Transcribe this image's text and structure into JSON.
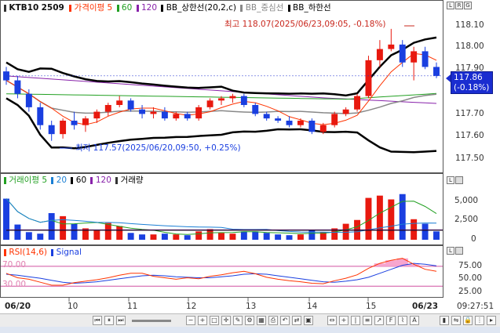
{
  "price_panel": {
    "symbol": "KTB10",
    "contract": "2509",
    "legend": [
      {
        "label": "가격이평",
        "periods": [
          "5",
          "60",
          "120"
        ],
        "colors": [
          "#ff3300",
          "#22a022",
          "#8822aa"
        ]
      },
      {
        "label": "BB_상한선(20,2,c)",
        "color": "#000000"
      },
      {
        "label": "BB_중심선",
        "color": "#888888"
      },
      {
        "label": "BB_하한선",
        "color": "#000000"
      }
    ],
    "y_ticks": [
      "118.10",
      "118.00",
      "117.90",
      "117.80",
      "117.70",
      "117.60",
      "117.50"
    ],
    "high_annotation": "최고 118.07(2025/06/23,09:05, -0.18%)",
    "low_annotation": "최저 117.57(2025/06/20,09:50, +0.25%)",
    "current_price": "117.86",
    "current_change": "(-0.18%)",
    "corner_buttons": [
      "L",
      "R",
      "G"
    ]
  },
  "volume_panel": {
    "legend_prefix": "거래이평",
    "periods": [
      "5",
      "20",
      "60",
      "120"
    ],
    "period_colors": [
      "#22a022",
      "#1a7fd4",
      "#000000",
      "#8822aa"
    ],
    "series_label": "거래량",
    "y_ticks": [
      "5,000",
      "2,500",
      "0"
    ]
  },
  "rsi_panel": {
    "legend": "RSI(14,6)",
    "signal": "Signal",
    "levels": [
      "70.00",
      "30.00"
    ],
    "y_ticks": [
      "75.00",
      "50.00",
      "25.00"
    ]
  },
  "x_axis": {
    "labels": [
      "06/20",
      "10",
      "11",
      "12",
      "13",
      "14",
      "15",
      "06/23"
    ],
    "clock": "09:27:51"
  },
  "colors": {
    "up": "#e8190f",
    "down": "#1a3fe0",
    "upper_band": "#000000",
    "mid_band": "#888888",
    "ma5": "#ff3300",
    "ma60": "#22a022",
    "ma120": "#8822aa",
    "highlight": "#1a2dd0"
  },
  "chart_data": {
    "type": "candlestick",
    "x_labels": [
      "06/20",
      "10",
      "11",
      "12",
      "13",
      "14",
      "15",
      "06/23"
    ],
    "price_ylim": [
      117.45,
      118.15
    ],
    "candles": [
      {
        "o": 117.88,
        "h": 117.9,
        "l": 117.82,
        "c": 117.84
      },
      {
        "o": 117.84,
        "h": 117.86,
        "l": 117.76,
        "c": 117.78
      },
      {
        "o": 117.78,
        "h": 117.8,
        "l": 117.7,
        "c": 117.72
      },
      {
        "o": 117.72,
        "h": 117.74,
        "l": 117.62,
        "c": 117.64
      },
      {
        "o": 117.64,
        "h": 117.66,
        "l": 117.57,
        "c": 117.6
      },
      {
        "o": 117.6,
        "h": 117.67,
        "l": 117.58,
        "c": 117.66
      },
      {
        "o": 117.66,
        "h": 117.7,
        "l": 117.62,
        "c": 117.64
      },
      {
        "o": 117.64,
        "h": 117.68,
        "l": 117.61,
        "c": 117.67
      },
      {
        "o": 117.67,
        "h": 117.71,
        "l": 117.65,
        "c": 117.7
      },
      {
        "o": 117.7,
        "h": 117.74,
        "l": 117.68,
        "c": 117.73
      },
      {
        "o": 117.73,
        "h": 117.77,
        "l": 117.72,
        "c": 117.75
      },
      {
        "o": 117.75,
        "h": 117.76,
        "l": 117.7,
        "c": 117.71
      },
      {
        "o": 117.71,
        "h": 117.73,
        "l": 117.67,
        "c": 117.69
      },
      {
        "o": 117.69,
        "h": 117.72,
        "l": 117.67,
        "c": 117.7
      },
      {
        "o": 117.7,
        "h": 117.72,
        "l": 117.66,
        "c": 117.67
      },
      {
        "o": 117.67,
        "h": 117.7,
        "l": 117.66,
        "c": 117.69
      },
      {
        "o": 117.69,
        "h": 117.7,
        "l": 117.66,
        "c": 117.67
      },
      {
        "o": 117.67,
        "h": 117.73,
        "l": 117.66,
        "c": 117.72
      },
      {
        "o": 117.72,
        "h": 117.76,
        "l": 117.71,
        "c": 117.75
      },
      {
        "o": 117.75,
        "h": 117.77,
        "l": 117.73,
        "c": 117.76
      },
      {
        "o": 117.76,
        "h": 117.78,
        "l": 117.74,
        "c": 117.77
      },
      {
        "o": 117.77,
        "h": 117.78,
        "l": 117.72,
        "c": 117.73
      },
      {
        "o": 117.73,
        "h": 117.74,
        "l": 117.68,
        "c": 117.69
      },
      {
        "o": 117.69,
        "h": 117.7,
        "l": 117.66,
        "c": 117.67
      },
      {
        "o": 117.67,
        "h": 117.68,
        "l": 117.65,
        "c": 117.66
      },
      {
        "o": 117.66,
        "h": 117.68,
        "l": 117.63,
        "c": 117.64
      },
      {
        "o": 117.64,
        "h": 117.67,
        "l": 117.63,
        "c": 117.66
      },
      {
        "o": 117.66,
        "h": 117.67,
        "l": 117.6,
        "c": 117.61
      },
      {
        "o": 117.61,
        "h": 117.65,
        "l": 117.6,
        "c": 117.64
      },
      {
        "o": 117.64,
        "h": 117.7,
        "l": 117.63,
        "c": 117.69
      },
      {
        "o": 117.69,
        "h": 117.72,
        "l": 117.68,
        "c": 117.71
      },
      {
        "o": 117.71,
        "h": 117.78,
        "l": 117.7,
        "c": 117.77
      },
      {
        "o": 117.77,
        "h": 117.95,
        "l": 117.76,
        "c": 117.93
      },
      {
        "o": 117.93,
        "h": 118.02,
        "l": 117.9,
        "c": 117.98
      },
      {
        "o": 117.98,
        "h": 118.07,
        "l": 117.97,
        "c": 118.0
      },
      {
        "o": 118.0,
        "h": 118.02,
        "l": 117.9,
        "c": 117.92
      },
      {
        "o": 117.92,
        "h": 117.99,
        "l": 117.84,
        "c": 117.97
      },
      {
        "o": 117.97,
        "h": 117.99,
        "l": 117.89,
        "c": 117.9
      },
      {
        "o": 117.9,
        "h": 117.92,
        "l": 117.85,
        "c": 117.86
      }
    ],
    "volume_ylim": [
      0,
      7000
    ],
    "volume": [
      5400,
      2000,
      1000,
      800,
      3500,
      3100,
      2100,
      1500,
      1200,
      2200,
      1800,
      900,
      700,
      700,
      800,
      700,
      600,
      1100,
      1400,
      900,
      800,
      1100,
      1100,
      900,
      700,
      600,
      700,
      1300,
      1000,
      1500,
      2100,
      2600,
      5500,
      5800,
      5300,
      6000,
      2700,
      2100,
      1100
    ],
    "rsi_ylim": [
      10,
      95
    ],
    "rsi": [
      56,
      47,
      44,
      38,
      32,
      32,
      37,
      40,
      43,
      47,
      52,
      56,
      56,
      50,
      47,
      44,
      47,
      45,
      50,
      53,
      57,
      60,
      55,
      48,
      44,
      41,
      39,
      36,
      35,
      41,
      46,
      53,
      66,
      76,
      82,
      86,
      74,
      64,
      60
    ],
    "rsi_signal": [
      54,
      52,
      49,
      46,
      42,
      38,
      36,
      37,
      39,
      42,
      45,
      48,
      51,
      52,
      51,
      49,
      48,
      47,
      47,
      49,
      51,
      54,
      55,
      54,
      51,
      48,
      45,
      42,
      39,
      38,
      40,
      43,
      48,
      56,
      64,
      72,
      76,
      74,
      71
    ]
  }
}
